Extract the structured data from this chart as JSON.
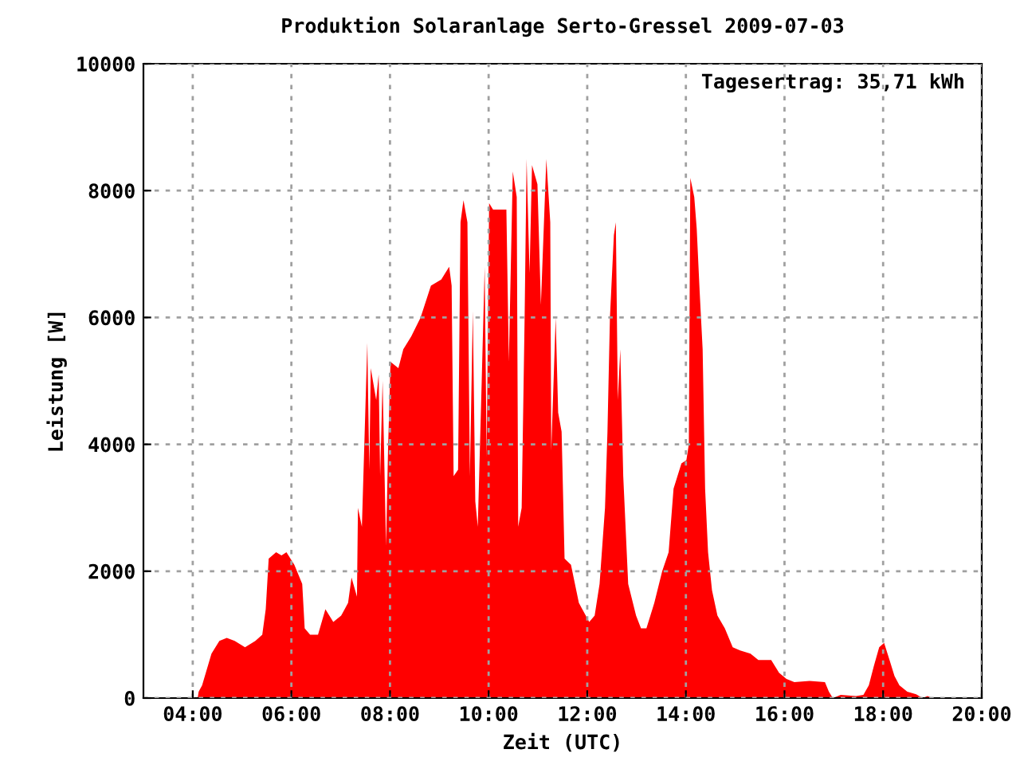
{
  "chart_data": {
    "type": "area",
    "title": "Produktion Solaranlage Serto-Gressel 2009-07-03",
    "xlabel": "Zeit (UTC)",
    "ylabel": "Leistung [W]",
    "annotations": [
      "Tagesertrag: 35,71 kWh"
    ],
    "xlim": [
      3,
      20
    ],
    "ylim": [
      0,
      10000
    ],
    "xticks": [
      {
        "value": 4,
        "label": "04:00"
      },
      {
        "value": 6,
        "label": "06:00"
      },
      {
        "value": 8,
        "label": "08:00"
      },
      {
        "value": 10,
        "label": "10:00"
      },
      {
        "value": 12,
        "label": "12:00"
      },
      {
        "value": 14,
        "label": "14:00"
      },
      {
        "value": 16,
        "label": "16:00"
      },
      {
        "value": 18,
        "label": "18:00"
      },
      {
        "value": 20,
        "label": "20:00"
      }
    ],
    "yticks": [
      0,
      2000,
      4000,
      6000,
      8000,
      10000
    ],
    "grid": true,
    "series": [
      {
        "color": "#ff0000",
        "x": [
          4.1,
          4.12,
          4.19,
          4.38,
          4.54,
          4.69,
          4.85,
          5.06,
          5.27,
          5.41,
          5.48,
          5.54,
          5.69,
          5.8,
          5.9,
          6.06,
          6.22,
          6.27,
          6.38,
          6.54,
          6.69,
          6.85,
          7.01,
          7.15,
          7.22,
          7.33,
          7.35,
          7.43,
          7.54,
          7.58,
          7.61,
          7.72,
          7.77,
          7.8,
          7.85,
          7.92,
          7.96,
          8.01,
          8.17,
          8.27,
          8.43,
          8.62,
          8.83,
          9.04,
          9.2,
          9.25,
          9.29,
          9.38,
          9.43,
          9.49,
          9.57,
          9.62,
          9.68,
          9.73,
          9.78,
          9.86,
          9.92,
          9.96,
          10.01,
          10.09,
          10.25,
          10.36,
          10.41,
          10.49,
          10.57,
          10.6,
          10.67,
          10.73,
          10.77,
          10.83,
          10.88,
          10.99,
          11.06,
          11.17,
          11.25,
          11.27,
          11.36,
          11.41,
          11.48,
          11.54,
          11.67,
          11.83,
          12.04,
          12.15,
          12.25,
          12.36,
          12.41,
          12.46,
          12.54,
          12.58,
          12.62,
          12.67,
          12.73,
          12.83,
          12.99,
          13.09,
          13.2,
          13.36,
          13.52,
          13.65,
          13.75,
          13.91,
          14.01,
          14.06,
          14.09,
          14.17,
          14.22,
          14.28,
          14.34,
          14.39,
          14.45,
          14.53,
          14.64,
          14.79,
          14.95,
          15.1,
          15.31,
          15.47,
          15.73,
          15.89,
          16.04,
          16.2,
          16.51,
          16.82,
          16.9,
          16.98,
          17.14,
          17.45,
          17.6,
          17.71,
          17.81,
          17.92,
          18.02,
          18.13,
          18.23,
          18.33,
          18.49,
          18.67,
          18.8,
          18.9,
          19.0
        ],
        "values": [
          0,
          100,
          200,
          700,
          900,
          950,
          900,
          800,
          900,
          1000,
          1400,
          2200,
          2300,
          2250,
          2300,
          2100,
          1800,
          1100,
          1000,
          1000,
          1400,
          1200,
          1300,
          1500,
          1900,
          1600,
          3000,
          2700,
          5600,
          3600,
          5200,
          4700,
          5100,
          3500,
          5000,
          2400,
          3900,
          5300,
          5200,
          5500,
          5700,
          6000,
          6500,
          6600,
          6800,
          6500,
          3500,
          3600,
          7500,
          7850,
          7500,
          3500,
          6100,
          3100,
          2700,
          5000,
          6800,
          3800,
          7800,
          7700,
          7700,
          7700,
          5300,
          8300,
          7900,
          2700,
          3000,
          6000,
          8500,
          6700,
          8400,
          8100,
          6200,
          8500,
          7500,
          3900,
          6000,
          4500,
          4200,
          2200,
          2100,
          1500,
          1200,
          1300,
          1800,
          3000,
          4200,
          6000,
          7300,
          7500,
          4700,
          5500,
          3500,
          1800,
          1300,
          1100,
          1100,
          1500,
          2000,
          2300,
          3300,
          3700,
          3750,
          4000,
          8200,
          7900,
          7400,
          6400,
          5500,
          3300,
          2300,
          1700,
          1300,
          1100,
          800,
          750,
          700,
          600,
          600,
          400,
          300,
          250,
          270,
          250,
          100,
          0,
          50,
          30,
          50,
          200,
          500,
          800,
          870,
          600,
          350,
          200,
          100,
          60,
          0,
          30,
          0
        ]
      }
    ]
  }
}
